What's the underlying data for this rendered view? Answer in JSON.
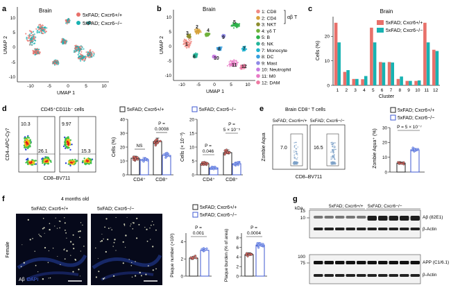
{
  "colors": {
    "red": "#e8706a",
    "teal": "#18b2b2",
    "blue": "#3c57d1",
    "sample_fill": "#7fa2c9"
  },
  "panels": {
    "a": {
      "letter": "a",
      "title": "Brain",
      "legend": [
        "5xFAD; Cxcr6+/+",
        "5xFAD; Cxcr6−/−"
      ],
      "xlabel": "UMAP 1",
      "ylabel": "UMAP 2",
      "xticks": [
        "-10",
        "-5",
        "0",
        "5",
        "10"
      ],
      "yticks": [
        "10",
        "5",
        "0",
        "-5",
        "-10"
      ]
    },
    "b": {
      "letter": "b",
      "title": "Brain",
      "xlabel": "UMAP 1",
      "ylabel": "UMAP 2",
      "xticks": [
        "-10",
        "-5",
        "0",
        "5",
        "10"
      ],
      "yticks": [
        "10",
        "5",
        "0",
        "-5",
        "-10"
      ],
      "ab_t": "αβ T",
      "clusters": [
        {
          "label": "1: CD8",
          "color": "#f08a83",
          "num": "1"
        },
        {
          "label": "2: CD4",
          "color": "#d7a23b",
          "num": "2"
        },
        {
          "label": "3: NKT",
          "color": "#8d8d2e",
          "num": "3"
        },
        {
          "label": "4: γδ T",
          "color": "#6fb23b",
          "num": "4"
        },
        {
          "label": "5: B",
          "color": "#2db24a",
          "num": "5"
        },
        {
          "label": "6: NK",
          "color": "#23b59a",
          "num": "6"
        },
        {
          "label": "7: Monocyte",
          "color": "#1fb3cf",
          "num": "7"
        },
        {
          "label": "8: DC",
          "color": "#38a0e0",
          "num": "8"
        },
        {
          "label": "9: Mast",
          "color": "#8f8ae6",
          "num": "9"
        },
        {
          "label": "10: Neutrophil",
          "color": "#c77be0",
          "num": "10"
        },
        {
          "label": "11: M0",
          "color": "#e97ac6",
          "num": "11"
        },
        {
          "label": "12: DAM",
          "color": "#ee7aa2",
          "num": "12"
        }
      ]
    },
    "c": {
      "letter": "c",
      "title": "Brain",
      "xlabel": "Cluster",
      "ylabel": "Cells (%)",
      "yticks": [
        "0",
        "10",
        "20"
      ],
      "legend": [
        "5xFAD; Cxcr6+/+",
        "5xFAD; Cxcr6−/−"
      ]
    },
    "d": {
      "letter": "d",
      "gate_title": "CD45⁺CD11b⁻ cells",
      "legend": [
        "5xFAD; Cxcr6+/+",
        "5xFAD; Cxcr6−/−"
      ],
      "flow_xlabel": "CD8–BV711",
      "flow_ylabel": "CD4–APC-Cy7",
      "flow1": {
        "tl": "10.3",
        "br": "26.1"
      },
      "flow2": {
        "tl": "9.97",
        "br": "15.3"
      },
      "bar1_ylabel": "Cells (%)",
      "bar1_yticks": [
        "0",
        "10",
        "20",
        "30",
        "40"
      ],
      "bar1_xticks": [
        "CD4⁺",
        "CD8⁺"
      ],
      "bar1_stats": [
        "NS",
        "P =",
        "0.0008"
      ],
      "bar2_ylabel": "Cells (× 10⁻³)",
      "bar2_yticks": [
        "0",
        "5",
        "10",
        "15",
        "20"
      ],
      "bar2_xticks": [
        "CD4⁺",
        "CD8⁺"
      ],
      "bar2_stats": [
        "P =",
        "0.046",
        "P =",
        "5 × 10⁻⁵"
      ]
    },
    "e": {
      "letter": "e",
      "title": "Brain CD8⁺ T cells",
      "label1": "5xFAD; Cxcr6+/+",
      "label2": "5xFAD; Cxcr6−/−",
      "pct1": "7.0",
      "pct2": "16.5",
      "flow_xlabel": "CD8–BV711",
      "flow_ylabel": "Zombie Aqua",
      "legend": [
        "5xFAD; Cxcr6+/+",
        "5xFAD; Cxcr6−/−"
      ],
      "stat": "P = 5 × 10⁻⁷",
      "bar_ylabel": "Zombie Aqua⁺ (%)",
      "bar_yticks": [
        "0",
        "10",
        "20",
        "30"
      ]
    },
    "f": {
      "letter": "f",
      "title": "4 months old",
      "label1": "5xFAD; Cxcr6+/+",
      "label2": "5xFAD; Cxcr6−/−",
      "side_label": "Female",
      "stain": "Aβ",
      "stain2": "DAPI",
      "legend": [
        "5xFAD; Cxcr6+/+",
        "5xFAD; Cxcr6−/−"
      ],
      "bar1_ylabel": "Plaque number (×10²)",
      "bar1_stats": [
        "P =",
        "0.001"
      ],
      "bar1_yticks": [
        "0",
        "2",
        "4"
      ],
      "bar2_ylabel": "Plaque burden (% of area)",
      "bar2_stats": [
        "P =",
        "0.0004"
      ],
      "bar2_yticks": [
        "0",
        "2",
        "4",
        "6",
        "8"
      ]
    },
    "g": {
      "letter": "g",
      "kda": "kDa",
      "group1": "5xFAD; Cxcr6+/+",
      "group2": "5xFAD; Cxcr6−/−",
      "mw_top": [
        "15",
        "10"
      ],
      "mw_bottom": [
        "100",
        "75"
      ],
      "band_labels": [
        "Aβ (82E1)",
        "β-Actin",
        "APP (C1/6.1)",
        "β-Actin"
      ]
    }
  },
  "chart_data": [
    {
      "type": "bar",
      "title": "Brain",
      "xlabel": "Cluster",
      "ylabel": "Cells (%)",
      "categories": [
        "1",
        "2",
        "3",
        "4",
        "5",
        "6",
        "7",
        "8",
        "9",
        "10",
        "11",
        "12"
      ],
      "ylim": [
        0,
        28
      ],
      "series": [
        {
          "name": "5xFAD; Cxcr6+/+",
          "values": [
            25.5,
            5.5,
            2.6,
            2.5,
            23.5,
            9.5,
            9.5,
            2.6,
            1.8,
            1.8,
            25.5,
            14.5
          ]
        },
        {
          "name": "5xFAD; Cxcr6−/−",
          "values": [
            17.5,
            6.2,
            2.6,
            3.8,
            17.5,
            9.3,
            9.3,
            3.6,
            1.8,
            2.0,
            17.5,
            14.0
          ]
        }
      ],
      "legend": "top-right"
    },
    {
      "type": "bar",
      "ylabel": "Cells (%)",
      "categories": [
        "CD4⁺",
        "CD8⁺"
      ],
      "ylim": [
        0,
        40
      ],
      "series": [
        {
          "name": "5xFAD; Cxcr6+/+",
          "values": [
            12,
            24
          ]
        },
        {
          "name": "5xFAD; Cxcr6−/−",
          "values": [
            11,
            14
          ]
        }
      ]
    },
    {
      "type": "bar",
      "ylabel": "Cells (× 10⁻³)",
      "categories": [
        "CD4⁺",
        "CD8⁺"
      ],
      "ylim": [
        0,
        20
      ],
      "series": [
        {
          "name": "5xFAD; Cxcr6+/+",
          "values": [
            4,
            8
          ]
        },
        {
          "name": "5xFAD; Cxcr6−/−",
          "values": [
            2.5,
            4
          ]
        }
      ]
    },
    {
      "type": "bar",
      "ylabel": "Zombie Aqua⁺ (%)",
      "categories": [
        "5xFAD; Cxcr6+/+",
        "5xFAD; Cxcr6−/−"
      ],
      "ylim": [
        0,
        30
      ],
      "series": [
        {
          "name": "Zombie Aqua⁺",
          "values": [
            6,
            15
          ]
        }
      ]
    },
    {
      "type": "bar",
      "ylabel": "Plaque number (×10²)",
      "categories": [
        "5xFAD; Cxcr6+/+",
        "5xFAD; Cxcr6−/−"
      ],
      "ylim": [
        0,
        5
      ],
      "series": [
        {
          "name": "Plaque number",
          "values": [
            2.1,
            3.0
          ]
        }
      ]
    },
    {
      "type": "bar",
      "ylabel": "Plaque burden (% of area)",
      "categories": [
        "5xFAD; Cxcr6+/+",
        "5xFAD; Cxcr6−/−"
      ],
      "ylim": [
        0,
        9
      ],
      "series": [
        {
          "name": "Plaque burden",
          "values": [
            4.5,
            6.5
          ]
        }
      ]
    }
  ]
}
